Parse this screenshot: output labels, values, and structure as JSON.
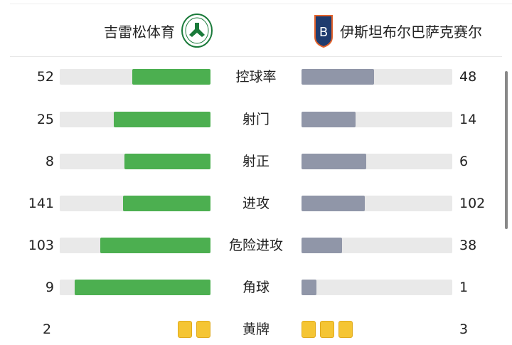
{
  "home": {
    "name": "吉雷松体育",
    "logo_text": "GIRESUNSPOR",
    "logo_year": "1967",
    "color": "#4caf50"
  },
  "away": {
    "name": "伊斯坦布尔巴萨克赛尔",
    "logo_letter": "B",
    "color": "#9096a8"
  },
  "stats": [
    {
      "label": "控球率",
      "home": 52,
      "away": 48
    },
    {
      "label": "射门",
      "home": 25,
      "away": 14
    },
    {
      "label": "射正",
      "home": 8,
      "away": 6
    },
    {
      "label": "进攻",
      "home": 141,
      "away": 102
    },
    {
      "label": "危险进攻",
      "home": 103,
      "away": 38
    },
    {
      "label": "角球",
      "home": 9,
      "away": 1
    }
  ],
  "yellow_cards": {
    "label": "黄牌",
    "home": 2,
    "away": 3,
    "color": "#f5c533"
  }
}
